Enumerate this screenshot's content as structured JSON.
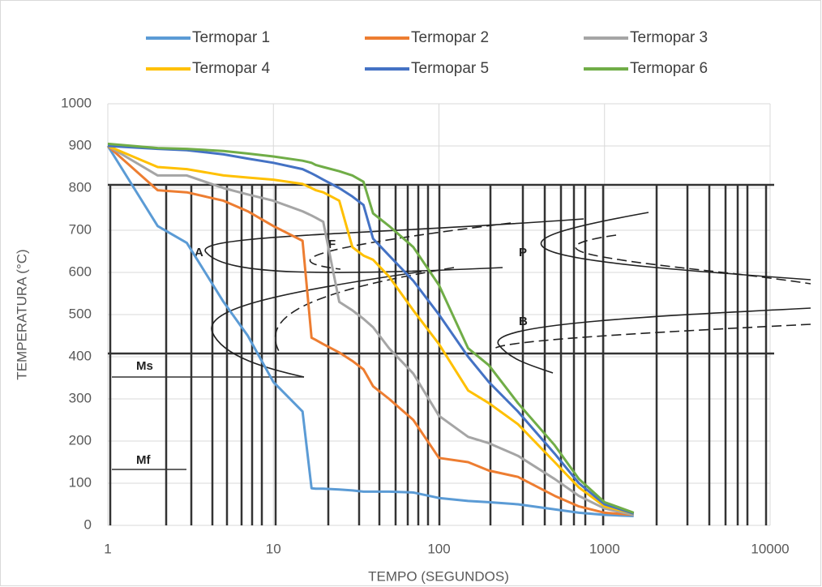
{
  "chart_data": {
    "type": "line",
    "x_label": "TEMPO (SEGUNDOS)",
    "y_label": "TEMPERATURA (°C)",
    "x_scale": "log",
    "x": [
      1,
      2,
      3,
      5,
      7,
      10,
      15,
      17,
      18,
      20,
      25,
      30,
      35,
      40,
      50,
      70,
      100,
      150,
      200,
      300,
      500,
      700,
      1000,
      1500
    ],
    "series": [
      {
        "name": "Termopar 1",
        "color": "#5b9bd5",
        "values": [
          900,
          710,
          670,
          530,
          450,
          340,
          270,
          88,
          87,
          87,
          85,
          83,
          80,
          80,
          80,
          78,
          65,
          58,
          55,
          50,
          38,
          30,
          25,
          22
        ]
      },
      {
        "name": "Termopar 2",
        "color": "#ed7d31",
        "values": [
          900,
          795,
          790,
          770,
          745,
          710,
          675,
          445,
          440,
          430,
          410,
          390,
          370,
          330,
          300,
          250,
          160,
          150,
          130,
          115,
          70,
          45,
          30,
          25
        ]
      },
      {
        "name": "Termopar 3",
        "color": "#a5a5a5",
        "values": [
          900,
          830,
          830,
          800,
          785,
          770,
          745,
          735,
          730,
          720,
          530,
          510,
          490,
          470,
          420,
          360,
          260,
          210,
          195,
          165,
          110,
          70,
          40,
          25
        ]
      },
      {
        "name": "Termopar 4",
        "color": "#ffc000",
        "values": [
          900,
          850,
          845,
          830,
          825,
          820,
          810,
          800,
          795,
          790,
          770,
          660,
          640,
          630,
          590,
          510,
          430,
          320,
          290,
          240,
          150,
          90,
          45,
          28
        ]
      },
      {
        "name": "Termopar 5",
        "color": "#4472c4",
        "values": [
          900,
          893,
          890,
          880,
          870,
          860,
          845,
          835,
          830,
          820,
          800,
          780,
          760,
          680,
          640,
          580,
          500,
          400,
          340,
          270,
          170,
          100,
          50,
          28
        ]
      },
      {
        "name": "Termopar 6",
        "color": "#70ad47",
        "values": [
          905,
          895,
          893,
          888,
          882,
          875,
          865,
          860,
          855,
          850,
          840,
          830,
          815,
          740,
          710,
          660,
          570,
          420,
          380,
          290,
          190,
          110,
          55,
          30
        ]
      }
    ],
    "xlim": [
      1,
      10000
    ],
    "xticks": [
      1,
      10,
      100,
      1000,
      10000
    ],
    "ylim": [
      0,
      1000
    ],
    "yticks": [
      0,
      100,
      200,
      300,
      400,
      500,
      600,
      700,
      800,
      900,
      1000
    ],
    "grid": true,
    "legend": "top",
    "annotations": [
      "A",
      "F",
      "P",
      "B",
      "Ms",
      "Mf"
    ]
  }
}
